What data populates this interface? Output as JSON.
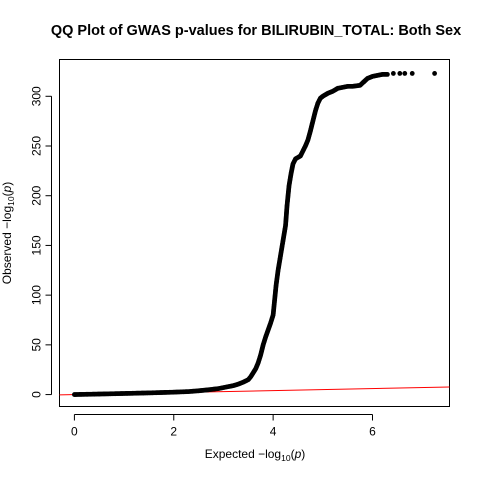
{
  "chart_data": {
    "type": "scatter",
    "title": "QQ Plot of GWAS p-values for BILIRUBIN_TOTAL: Both Sex",
    "xlabel": {
      "prefix": "Expected  −log",
      "sub": "10",
      "paren_open": "(",
      "var": "p",
      "paren_close": ")"
    },
    "ylabel": {
      "prefix": "Observed  −log",
      "sub": "10",
      "paren_open": "(",
      "var": "p",
      "paren_close": ")"
    },
    "xlim": [
      -0.3,
      7.55
    ],
    "ylim": [
      -12,
      337
    ],
    "x_ticks": [
      0,
      2,
      4,
      6
    ],
    "y_ticks": [
      0,
      50,
      100,
      150,
      200,
      250,
      300
    ],
    "grid": false,
    "reference_line": {
      "slope": 1,
      "intercept": 0,
      "color": "#ff0000"
    },
    "point_color": "#000000",
    "series": [
      {
        "values": [
          [
            0.0,
            0.0
          ],
          [
            0.4,
            0.4
          ],
          [
            0.8,
            0.85
          ],
          [
            1.2,
            1.3
          ],
          [
            1.6,
            1.8
          ],
          [
            2.0,
            2.4
          ],
          [
            2.3,
            3.0
          ],
          [
            2.5,
            3.8
          ],
          [
            2.7,
            4.8
          ],
          [
            2.9,
            6.0
          ],
          [
            3.0,
            7.0
          ],
          [
            3.1,
            8.0
          ],
          [
            3.2,
            9.0
          ],
          [
            3.3,
            10.5
          ],
          [
            3.4,
            12.5
          ],
          [
            3.5,
            15.0
          ],
          [
            3.55,
            18.0
          ],
          [
            3.6,
            22.0
          ],
          [
            3.65,
            26.0
          ],
          [
            3.7,
            32.0
          ],
          [
            3.75,
            40.0
          ],
          [
            3.8,
            50.0
          ],
          [
            3.85,
            58.0
          ],
          [
            3.9,
            65.0
          ],
          [
            3.95,
            72.0
          ],
          [
            4.0,
            80.0
          ],
          [
            4.03,
            95.0
          ],
          [
            4.06,
            110.0
          ],
          [
            4.1,
            125.0
          ],
          [
            4.15,
            140.0
          ],
          [
            4.2,
            155.0
          ],
          [
            4.25,
            170.0
          ],
          [
            4.28,
            190.0
          ],
          [
            4.32,
            210.0
          ],
          [
            4.36,
            222.0
          ],
          [
            4.4,
            232.0
          ],
          [
            4.45,
            237.0
          ],
          [
            4.55,
            240.0
          ],
          [
            4.6,
            245.0
          ],
          [
            4.65,
            250.0
          ],
          [
            4.7,
            256.0
          ],
          [
            4.75,
            265.0
          ],
          [
            4.8,
            275.0
          ],
          [
            4.85,
            285.0
          ],
          [
            4.9,
            293.0
          ],
          [
            4.95,
            298.0
          ],
          [
            5.0,
            300.0
          ],
          [
            5.1,
            303.0
          ],
          [
            5.2,
            305.0
          ],
          [
            5.3,
            308.0
          ],
          [
            5.4,
            309.0
          ],
          [
            5.5,
            310.0
          ],
          [
            5.6,
            310.0
          ],
          [
            5.75,
            311.0
          ],
          [
            5.9,
            318.0
          ],
          [
            6.0,
            320.0
          ],
          [
            6.1,
            321.0
          ],
          [
            6.2,
            322.0
          ],
          [
            6.3,
            322.0
          ]
        ]
      }
    ],
    "isolated_points": [
      [
        6.42,
        323
      ],
      [
        6.55,
        323
      ],
      [
        6.65,
        323
      ],
      [
        6.8,
        323
      ],
      [
        7.25,
        323
      ]
    ]
  }
}
